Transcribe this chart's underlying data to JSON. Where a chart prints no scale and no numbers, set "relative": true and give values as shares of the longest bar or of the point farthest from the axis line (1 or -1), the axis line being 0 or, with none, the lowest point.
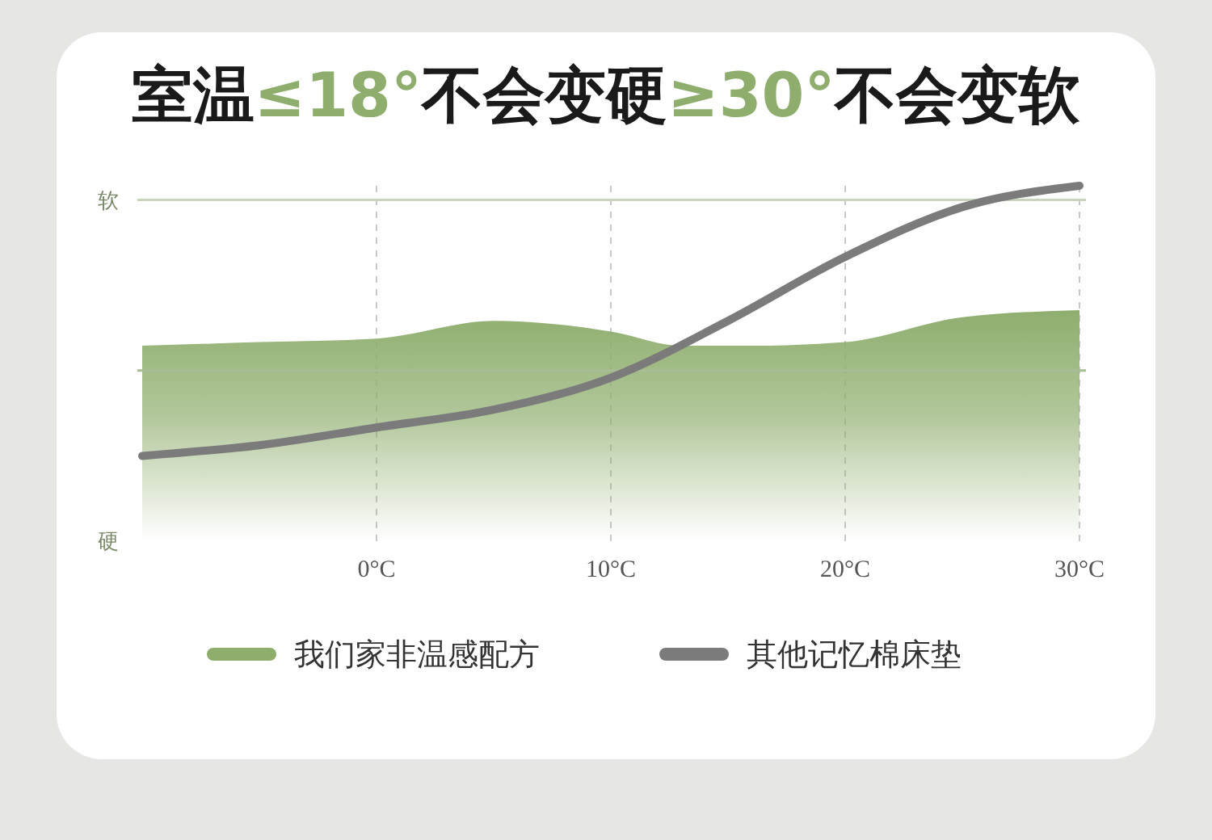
{
  "chart_data": {
    "type": "area",
    "title": "室温≤18°不会变硬≥30°不会变软",
    "relative": true,
    "x": [
      -10,
      -5,
      0,
      5,
      10,
      13,
      16,
      20,
      25,
      30
    ],
    "series": [
      {
        "name": "我们家非温感配方",
        "color": "#8fae6e",
        "values": [
          0.55,
          0.56,
          0.57,
          0.62,
          0.59,
          0.55,
          0.55,
          0.56,
          0.63,
          0.65
        ]
      },
      {
        "name": "其他记忆棉床垫",
        "type": "line",
        "color": "#7b7b7b",
        "x": [
          -10,
          -5,
          0,
          5,
          10,
          15,
          20,
          25,
          30
        ],
        "values": [
          0.24,
          0.27,
          0.32,
          0.37,
          0.46,
          0.62,
          0.8,
          0.94,
          1
        ]
      }
    ],
    "xlim": [
      -10,
      30
    ],
    "xticks": [
      {
        "value": 0,
        "label": "0°C"
      },
      {
        "value": 10,
        "label": "10°C"
      },
      {
        "value": 20,
        "label": "20°C"
      },
      {
        "value": 30,
        "label": "30°C"
      }
    ],
    "ref_lines": [
      {
        "axis": "y",
        "value": 0.96,
        "label": "软",
        "color": "#c9d4bd"
      },
      {
        "axis": "y",
        "value": 0.48,
        "label": null,
        "color": "#a9bd95"
      }
    ],
    "annotations": [
      "硬"
    ],
    "grid": "x",
    "legend": "bottom",
    "line_style": "solid",
    "marker": "none"
  }
}
